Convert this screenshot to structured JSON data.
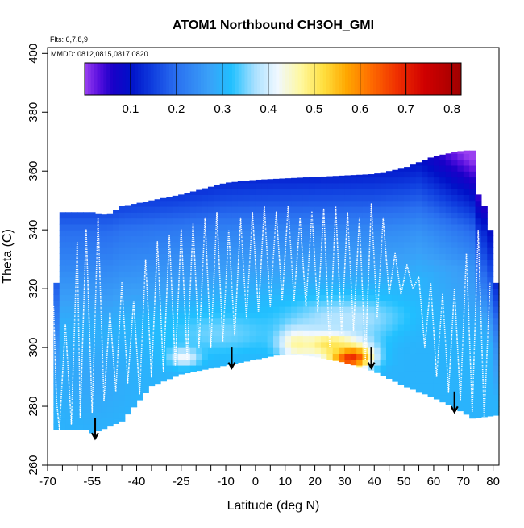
{
  "chart_data": {
    "type": "heatmap",
    "title": "ATOM1 Northbound CH3OH_GMI",
    "annotations": [
      "Flts: 6,7,8,9",
      "MMDD: 0812,0815,0817,0820"
    ],
    "xlabel": "Latitude (deg N)",
    "ylabel": "Theta (C)",
    "xlim": [
      -70,
      82
    ],
    "ylim": [
      260,
      402
    ],
    "x_ticks": [
      -70,
      -55,
      -40,
      -25,
      -10,
      0,
      10,
      20,
      30,
      40,
      50,
      60,
      70,
      80
    ],
    "x_tick_labels": [
      "-70",
      "-55",
      "-40",
      "-25",
      "-10",
      "0",
      "10",
      "20",
      "30",
      "40",
      "50",
      "60",
      "70",
      "80"
    ],
    "x_minor_ticks": [
      -65,
      -60,
      -50,
      -45,
      -35,
      -30,
      -20,
      -15,
      -5,
      5,
      15,
      25,
      35,
      45,
      55,
      65,
      75
    ],
    "y_ticks": [
      260,
      280,
      300,
      320,
      340,
      360,
      380,
      400
    ],
    "y_tick_labels": [
      "260",
      "280",
      "300",
      "320",
      "340",
      "360",
      "380",
      "400"
    ],
    "colorbar": {
      "min": 0.0,
      "max": 0.82,
      "ticks": [
        0.1,
        0.2,
        0.3,
        0.4,
        0.5,
        0.6,
        0.7,
        0.8
      ],
      "tick_labels": [
        "0.1",
        "0.2",
        "0.3",
        "0.4",
        "0.5",
        "0.6",
        "0.7",
        "0.8"
      ],
      "stops": [
        {
          "v": 0.0,
          "color": "#9a40f0"
        },
        {
          "v": 0.03,
          "color": "#5a10e0"
        },
        {
          "v": 0.06,
          "color": "#1a00c8"
        },
        {
          "v": 0.1,
          "color": "#0010c8"
        },
        {
          "v": 0.15,
          "color": "#1040e0"
        },
        {
          "v": 0.2,
          "color": "#2a70f0"
        },
        {
          "v": 0.27,
          "color": "#3aa0f8"
        },
        {
          "v": 0.32,
          "color": "#20c0ff"
        },
        {
          "v": 0.37,
          "color": "#a8e0ff"
        },
        {
          "v": 0.42,
          "color": "#f0f8ff"
        },
        {
          "v": 0.47,
          "color": "#fff8a0"
        },
        {
          "v": 0.52,
          "color": "#ffe040"
        },
        {
          "v": 0.57,
          "color": "#ffa800"
        },
        {
          "v": 0.62,
          "color": "#ff7000"
        },
        {
          "v": 0.68,
          "color": "#f03000"
        },
        {
          "v": 0.74,
          "color": "#d00000"
        },
        {
          "v": 0.82,
          "color": "#a00000"
        }
      ]
    },
    "data_top": [
      [
        -68,
        315
      ],
      [
        -67,
        322
      ],
      [
        -66,
        335
      ],
      [
        -65,
        346
      ],
      [
        -55,
        346
      ],
      [
        -50,
        345
      ],
      [
        -45,
        348
      ],
      [
        -35,
        350
      ],
      [
        -25,
        352
      ],
      [
        -10,
        356
      ],
      [
        0,
        357
      ],
      [
        20,
        358
      ],
      [
        40,
        359
      ],
      [
        50,
        361
      ],
      [
        60,
        365
      ],
      [
        70,
        367
      ],
      [
        73,
        367
      ],
      [
        74,
        360
      ],
      [
        75,
        352
      ],
      [
        77,
        348
      ],
      [
        79,
        340
      ],
      [
        80,
        330
      ],
      [
        81,
        322
      ]
    ],
    "data_bottom": [
      [
        -68,
        272
      ],
      [
        -57,
        272
      ],
      [
        -55,
        271
      ],
      [
        -52,
        272
      ],
      [
        -45,
        275
      ],
      [
        -35,
        287
      ],
      [
        -25,
        291
      ],
      [
        -10,
        294
      ],
      [
        0,
        296
      ],
      [
        10,
        298
      ],
      [
        20,
        297
      ],
      [
        30,
        295
      ],
      [
        40,
        292
      ],
      [
        50,
        287
      ],
      [
        60,
        283
      ],
      [
        70,
        278
      ],
      [
        73,
        276
      ],
      [
        81,
        277
      ]
    ],
    "concentration_blobs": [
      {
        "lat": 32,
        "theta": 297,
        "value": 0.74,
        "sx": 7,
        "sy": 4
      },
      {
        "lat": 25,
        "theta": 302,
        "value": 0.55,
        "sx": 11,
        "sy": 5
      },
      {
        "lat": 14,
        "theta": 302,
        "value": 0.5,
        "sx": 6,
        "sy": 5
      },
      {
        "lat": -24,
        "theta": 297,
        "value": 0.44,
        "sx": 5,
        "sy": 3
      },
      {
        "lat": 30,
        "theta": 310,
        "value": 0.38,
        "sx": 20,
        "sy": 7
      },
      {
        "lat": -12,
        "theta": 305,
        "value": 0.35,
        "sx": 18,
        "sy": 7
      },
      {
        "lat": 62,
        "theta": 300,
        "value": 0.3,
        "sx": 12,
        "sy": 10
      },
      {
        "lat": -55,
        "theta": 290,
        "value": 0.28,
        "sx": 12,
        "sy": 14
      }
    ],
    "flight_tracks": [
      {
        "lat": [
          -68,
          -67,
          -66,
          -64,
          -62,
          -60,
          -59,
          -57,
          -55,
          -53,
          -51,
          -49,
          -47,
          -45,
          -43,
          -41,
          -39,
          -37,
          -35,
          -33,
          -31,
          -29,
          -27,
          -25,
          -23,
          -21,
          -19,
          -17,
          -15,
          -13,
          -11,
          -9,
          -7,
          -5,
          -3,
          -1,
          1,
          3,
          5,
          7,
          9,
          11,
          13,
          15,
          17,
          19,
          21,
          23,
          25,
          27,
          29,
          31,
          33,
          35,
          37,
          39,
          41,
          43,
          45,
          47,
          49,
          51,
          53,
          55,
          57,
          59,
          61,
          63,
          65,
          67,
          69,
          71,
          73,
          75,
          77,
          79
        ],
        "theta": [
          314,
          282,
          272,
          308,
          274,
          336,
          276,
          340,
          278,
          344,
          282,
          312,
          285,
          322,
          288,
          316,
          284,
          330,
          290,
          336,
          292,
          338,
          294,
          340,
          296,
          342,
          300,
          344,
          300,
          346,
          302,
          340,
          304,
          344,
          310,
          346,
          312,
          348,
          314,
          346,
          316,
          348,
          316,
          344,
          314,
          346,
          312,
          347,
          300,
          348,
          305,
          346,
          306,
          344,
          296,
          349,
          310,
          344,
          318,
          332,
          318,
          328,
          320,
          324,
          300,
          322,
          290,
          318,
          285,
          320,
          282,
          332,
          278,
          340,
          276,
          322
        ]
      }
    ],
    "arrows": [
      {
        "lat": -54,
        "theta_start": 276,
        "theta_end": 269
      },
      {
        "lat": -8,
        "theta_start": 300,
        "theta_end": 293
      },
      {
        "lat": 39,
        "theta_start": 300,
        "theta_end": 293
      },
      {
        "lat": 67,
        "theta_start": 285,
        "theta_end": 278
      }
    ]
  }
}
